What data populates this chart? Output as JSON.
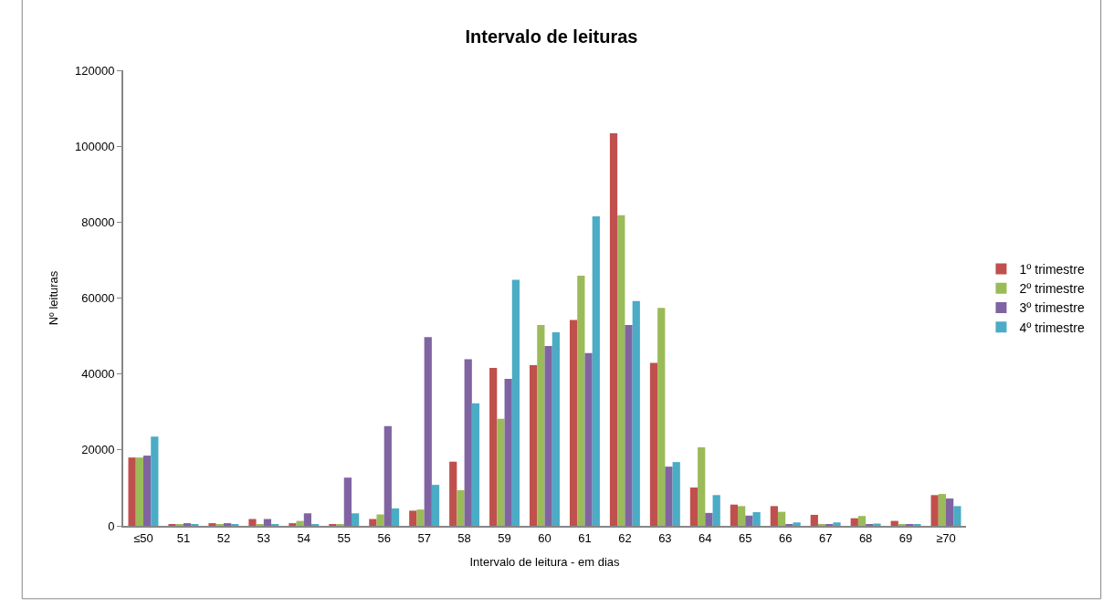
{
  "chart_data": {
    "type": "bar",
    "title": "Intervalo de leituras",
    "xlabel": "Intervalo de leitura - em dias",
    "ylabel": "Nº leituras",
    "categories": [
      "≤50",
      "51",
      "52",
      "53",
      "54",
      "55",
      "56",
      "57",
      "58",
      "59",
      "60",
      "61",
      "62",
      "63",
      "64",
      "65",
      "66",
      "67",
      "68",
      "69",
      "≥70"
    ],
    "series": [
      {
        "name": "1º trimestre",
        "color": "#c0504d",
        "values": [
          18000,
          300,
          700,
          1800,
          700,
          300,
          1800,
          4000,
          16900,
          41600,
          42300,
          54200,
          103400,
          42900,
          10100,
          5600,
          5200,
          2900,
          2000,
          1300,
          8100
        ]
      },
      {
        "name": "2º trimestre",
        "color": "#9bbb59",
        "values": [
          18000,
          300,
          300,
          300,
          1300,
          300,
          3000,
          4300,
          9400,
          28200,
          52900,
          65900,
          81800,
          57400,
          20700,
          5200,
          3700,
          500,
          2600,
          300,
          8400
        ]
      },
      {
        "name": "3º trimestre",
        "color": "#8064a2",
        "values": [
          18500,
          700,
          700,
          1800,
          3300,
          12700,
          26300,
          49700,
          43900,
          38700,
          47400,
          45500,
          52900,
          15600,
          3400,
          2700,
          300,
          300,
          300,
          300,
          7200
        ]
      },
      {
        "name": "4º trimestre",
        "color": "#4bacc6",
        "values": [
          23500,
          300,
          300,
          300,
          300,
          3300,
          4600,
          10800,
          32300,
          64800,
          51000,
          81500,
          59200,
          16800,
          8100,
          3600,
          900,
          900,
          600,
          300,
          5200
        ]
      }
    ],
    "ylim": [
      0,
      120000
    ],
    "yticks": [
      0,
      20000,
      40000,
      60000,
      80000,
      100000,
      120000
    ],
    "grid": false,
    "legend": "right"
  }
}
